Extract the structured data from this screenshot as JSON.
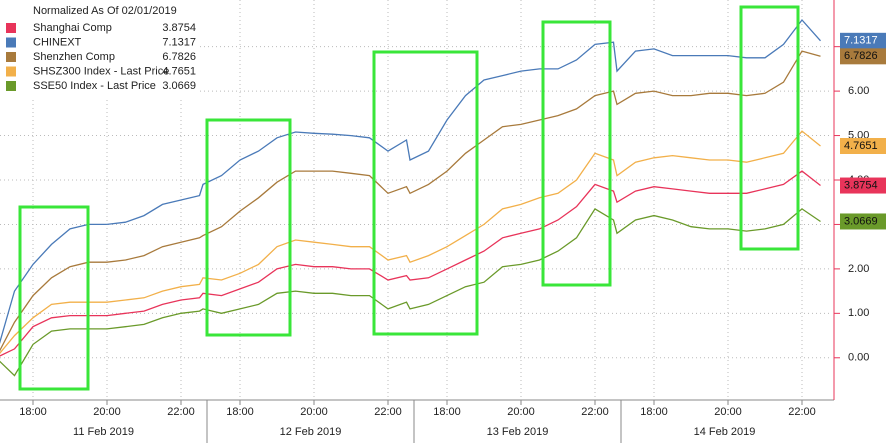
{
  "chart_data": {
    "type": "line",
    "title": "Normalized As Of 02/01/2019",
    "categories": [
      null,
      null,
      "18:00",
      null,
      null,
      null,
      "20:00",
      null,
      null,
      null,
      "22:00",
      null,
      null,
      null,
      "18:00",
      null,
      null,
      null,
      "20:00",
      null,
      null,
      null,
      "22:00",
      null,
      null,
      null,
      "18:00",
      null,
      null,
      null,
      "20:00",
      null,
      null,
      null,
      "22:00",
      null,
      null,
      null,
      "18:00",
      null,
      null,
      null,
      "20:00",
      null,
      null,
      null,
      "22:00",
      null
    ],
    "x_groups": [
      "11 Feb 2019",
      "12 Feb 2019",
      "13 Feb 2019",
      "14 Feb 2019"
    ],
    "series": [
      {
        "name": "Shanghai Comp",
        "color": "#e8345a",
        "values": [
          0.0,
          0.2,
          0.7,
          0.9,
          0.95,
          0.95,
          0.95,
          1.0,
          1.05,
          1.2,
          1.3,
          1.35,
          1.45,
          1.4,
          1.55,
          1.7,
          2.0,
          2.1,
          2.05,
          2.05,
          2.0,
          2.0,
          1.75,
          1.85,
          1.75,
          1.8,
          2.0,
          2.2,
          2.4,
          2.7,
          2.8,
          2.9,
          3.1,
          3.4,
          3.9,
          3.75,
          3.5,
          3.75,
          3.85,
          3.8,
          3.75,
          3.7,
          3.7,
          3.7,
          3.8,
          3.9,
          4.2,
          3.8754
        ]
      },
      {
        "name": "CHINEXT",
        "color": "#4a7ab8",
        "values": [
          0.05,
          1.5,
          2.1,
          2.55,
          2.9,
          3.0,
          3.0,
          3.05,
          3.2,
          3.45,
          3.55,
          3.65,
          3.9,
          4.1,
          4.45,
          4.65,
          4.95,
          5.08,
          5.05,
          5.03,
          5.0,
          4.95,
          4.65,
          4.9,
          4.45,
          4.65,
          5.35,
          5.9,
          6.25,
          6.35,
          6.45,
          6.5,
          6.5,
          6.7,
          7.05,
          7.1,
          6.45,
          6.9,
          6.95,
          6.8,
          6.8,
          6.8,
          6.8,
          6.75,
          6.75,
          7.05,
          7.6,
          7.1317
        ]
      },
      {
        "name": "Shenzhen Comp",
        "color": "#a87a3c",
        "values": [
          0.0,
          0.8,
          1.4,
          1.8,
          2.05,
          2.15,
          2.15,
          2.2,
          2.3,
          2.5,
          2.6,
          2.7,
          2.75,
          2.95,
          3.3,
          3.6,
          3.95,
          4.2,
          4.2,
          4.2,
          4.15,
          4.1,
          3.7,
          3.85,
          3.7,
          3.9,
          4.2,
          4.6,
          4.9,
          5.2,
          5.25,
          5.35,
          5.45,
          5.6,
          5.9,
          6.0,
          5.7,
          5.95,
          6.0,
          5.9,
          5.9,
          5.95,
          5.95,
          5.9,
          5.95,
          6.2,
          6.9,
          6.7826
        ]
      },
      {
        "name": "SHSZ300 Index - Last Price",
        "color": "#f2b04a",
        "values": [
          0.0,
          0.5,
          0.9,
          1.2,
          1.25,
          1.25,
          1.25,
          1.3,
          1.35,
          1.5,
          1.6,
          1.65,
          1.8,
          1.75,
          1.9,
          2.1,
          2.5,
          2.65,
          2.6,
          2.55,
          2.5,
          2.5,
          2.2,
          2.3,
          2.15,
          2.3,
          2.5,
          2.75,
          3.0,
          3.35,
          3.45,
          3.6,
          3.7,
          4.0,
          4.6,
          4.45,
          4.1,
          4.4,
          4.5,
          4.55,
          4.5,
          4.45,
          4.45,
          4.4,
          4.5,
          4.6,
          5.1,
          4.7651
        ]
      },
      {
        "name": "SSE50 Index - Last Price",
        "color": "#6a9a2a",
        "values": [
          0.0,
          -0.4,
          0.3,
          0.6,
          0.65,
          0.65,
          0.65,
          0.7,
          0.75,
          0.9,
          1.0,
          1.05,
          1.1,
          1.0,
          1.1,
          1.2,
          1.45,
          1.5,
          1.45,
          1.45,
          1.4,
          1.4,
          1.1,
          1.25,
          1.1,
          1.2,
          1.4,
          1.6,
          1.7,
          2.05,
          2.1,
          2.2,
          2.4,
          2.7,
          3.35,
          3.1,
          2.8,
          3.1,
          3.2,
          3.1,
          2.95,
          2.9,
          2.9,
          2.85,
          2.9,
          3.0,
          3.35,
          3.0669
        ]
      }
    ],
    "ylim": [
      -0.95,
      8.05
    ],
    "yticks": [
      {
        "value": 0,
        "label": "0.00"
      },
      {
        "value": 1,
        "label": "1.00"
      },
      {
        "value": 2,
        "label": "2.00"
      },
      {
        "value": 3,
        "label": "3.00"
      },
      {
        "value": 4,
        "label": "4.00"
      },
      {
        "value": 5,
        "label": "5.00"
      },
      {
        "value": 6,
        "label": "6.00"
      },
      {
        "value": 7,
        "label": "7.00"
      }
    ],
    "grid": true
  }
}
